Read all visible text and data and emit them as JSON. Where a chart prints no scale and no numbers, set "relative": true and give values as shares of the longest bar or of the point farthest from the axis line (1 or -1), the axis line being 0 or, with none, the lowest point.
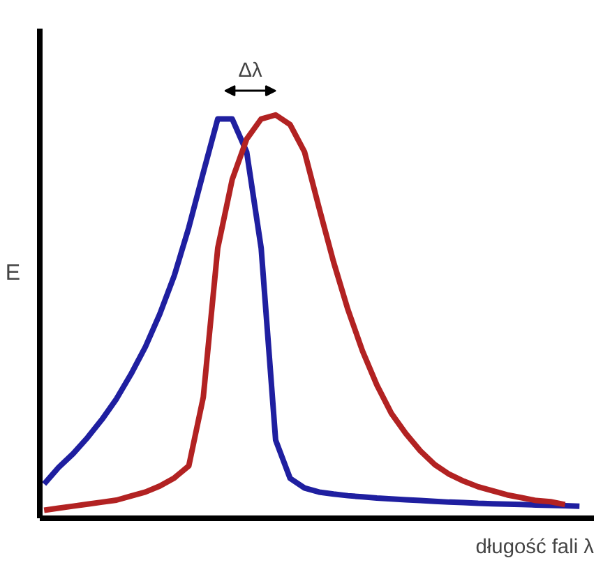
{
  "chart_data": {
    "type": "line",
    "relative": true,
    "xlabel": "długość fali λ",
    "ylabel": "E",
    "annotations": [
      "Δλ"
    ],
    "categories": [
      null,
      null,
      null,
      null,
      null,
      null,
      null,
      null,
      null,
      null,
      null,
      null,
      null,
      null,
      null,
      null,
      null,
      null,
      null,
      null,
      null,
      null,
      null,
      null,
      null,
      null,
      null,
      null,
      null,
      null,
      null,
      null,
      null,
      null,
      null,
      null,
      null,
      null
    ],
    "series": [
      {
        "color": "#1f1fa0",
        "values": [
          0.085,
          0.126,
          0.16,
          0.2,
          0.245,
          0.296,
          0.357,
          0.425,
          0.507,
          0.602,
          0.721,
          0.857,
          0.99,
          0.99,
          0.908,
          0.67,
          0.194,
          0.099,
          0.075,
          0.065,
          0.06,
          0.056,
          0.053,
          0.05,
          0.048,
          0.046,
          0.044,
          0.042,
          0.04,
          0.039,
          0.037,
          0.036,
          0.035,
          0.034,
          0.033,
          0.032,
          0.031,
          0.03
        ]
      },
      {
        "color": "#b22222",
        "values": [
          0.02,
          0.025,
          0.03,
          0.035,
          0.04,
          0.045,
          0.055,
          0.065,
          0.08,
          0.1,
          0.13,
          0.3,
          0.67,
          0.84,
          0.94,
          0.99,
          1,
          0.976,
          0.908,
          0.77,
          0.636,
          0.517,
          0.415,
          0.33,
          0.26,
          0.21,
          0.167,
          0.133,
          0.109,
          0.092,
          0.078,
          0.068,
          0.058,
          0.051,
          0.044,
          0.041,
          0.034,
          null
        ]
      }
    ],
    "grid": false,
    "marker": "none",
    "line_style": "solid"
  }
}
